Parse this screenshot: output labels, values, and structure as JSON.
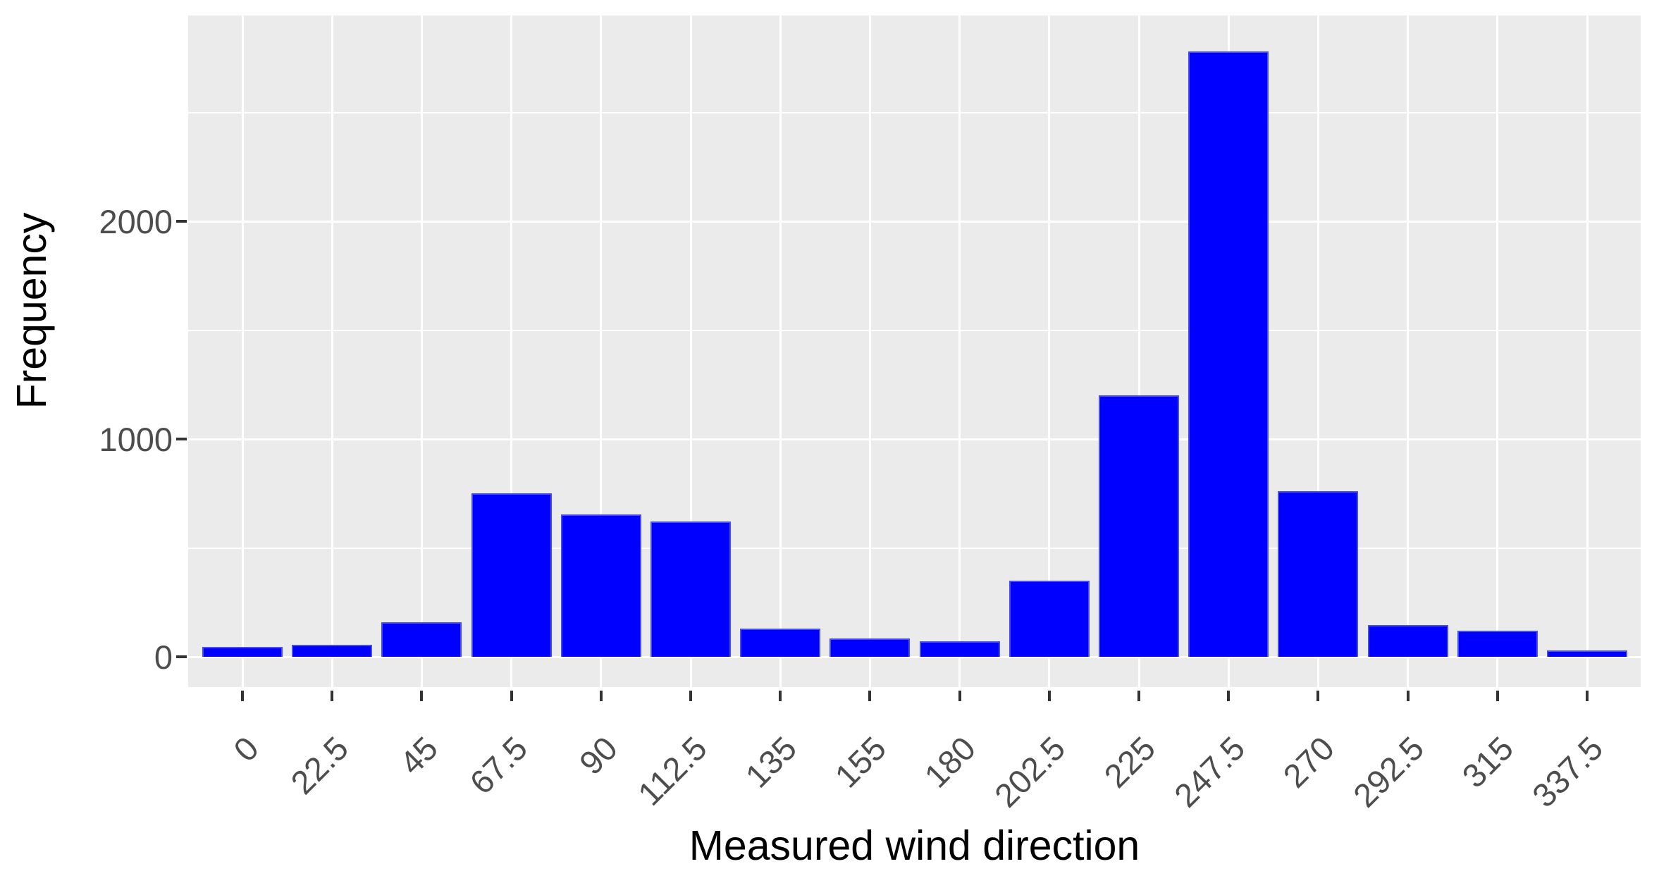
{
  "chart_data": {
    "type": "bar",
    "title": "",
    "xlabel": "Measured wind direction",
    "ylabel": "Frequency",
    "categories": [
      "0",
      "22.5",
      "45",
      "67.5",
      "90",
      "112.5",
      "135",
      "155",
      "180",
      "202.5",
      "225",
      "247.5",
      "270",
      "292.5",
      "315",
      "337.5"
    ],
    "values": [
      45,
      55,
      160,
      750,
      655,
      620,
      130,
      85,
      70,
      350,
      1200,
      2780,
      760,
      145,
      120,
      30
    ],
    "y_tick_values": [
      0,
      1000,
      2000
    ],
    "y_tick_labels": [
      "0",
      "1000",
      "2000"
    ],
    "y_minor_gridlines": [
      500,
      1500,
      2500
    ],
    "y_major_gridlines": [
      0,
      1000,
      2000
    ],
    "ylim": [
      -140,
      2920
    ],
    "grid": true,
    "legend": false,
    "style": "ggplot-grey",
    "colors": {
      "bar_fill": "#0000FF",
      "bar_edge": "#828CE1",
      "panel_background": "#EBEBEB",
      "gridline": "#FFFFFF",
      "tick_label": "#4D4D4D",
      "axis_title": "#000000",
      "tick_mark": "#333333",
      "page_background": "#FFFFFF"
    }
  }
}
